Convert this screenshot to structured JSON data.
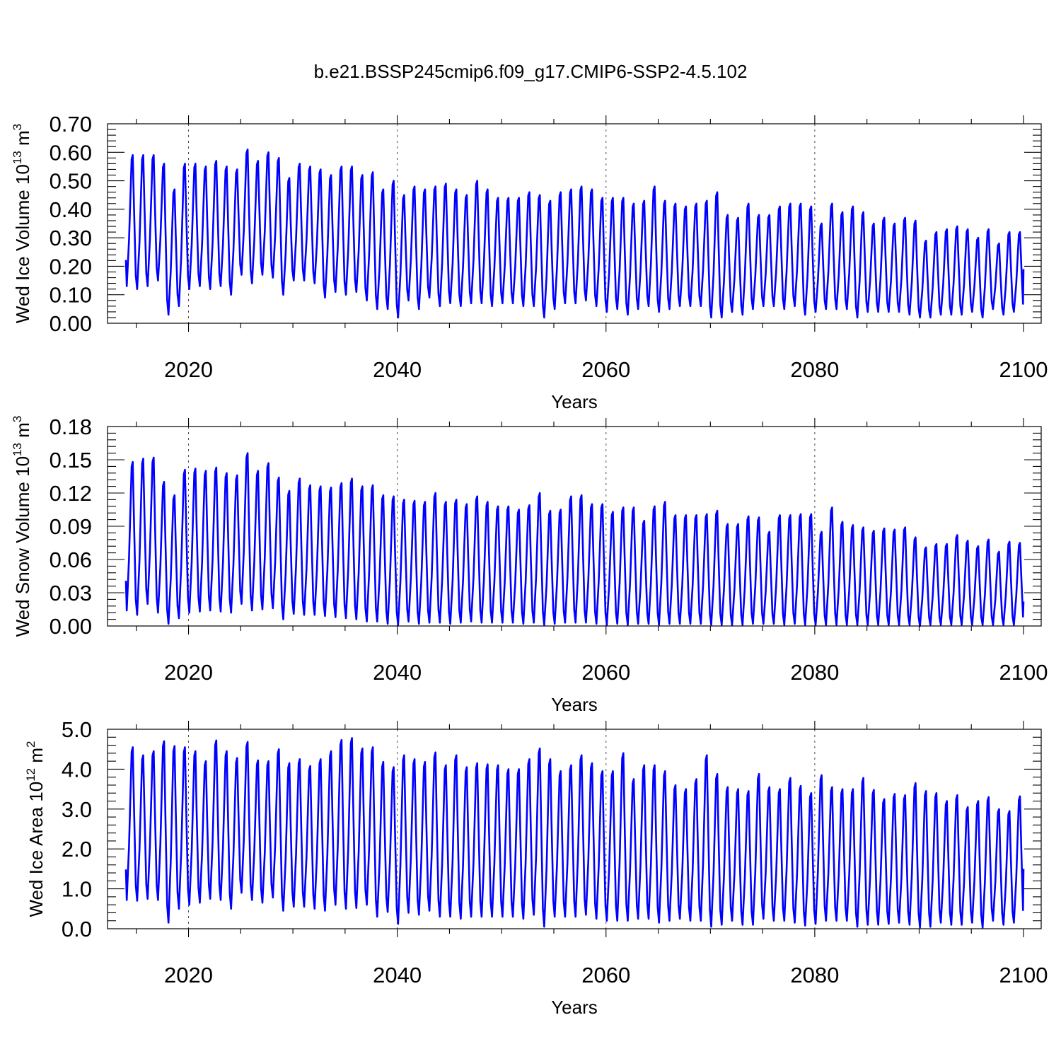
{
  "title": "b.e21.BSSP245cmip6.f09_g17.CMIP6-SSP2-4.5.102",
  "chart_data": [
    {
      "type": "line",
      "ylabel": "Wed Ice Volume 10",
      "ylabel_exponent": "13",
      "ylabel_unit": "m",
      "ylabel_unit_exponent": "3",
      "xlabel": "Years",
      "xlim": [
        2013,
        2100
      ],
      "ylim": [
        0,
        0.7
      ],
      "x_ticks": [
        "2020",
        "2040",
        "2060",
        "2080",
        "2100"
      ],
      "y_ticks": [
        "0.00",
        "0.10",
        "0.20",
        "0.30",
        "0.40",
        "0.50",
        "0.60",
        "0.70"
      ],
      "grid": "vertical dashed at labeled years",
      "color": "#0000ff",
      "series": [
        {
          "seasonal_cycle": "one maximum and one minimum per year",
          "x": [
            2014,
            2015,
            2016,
            2017,
            2018,
            2019,
            2020,
            2021,
            2022,
            2023,
            2024,
            2025,
            2026,
            2027,
            2028,
            2029,
            2030,
            2031,
            2032,
            2033,
            2034,
            2035,
            2036,
            2037,
            2038,
            2039,
            2040,
            2041,
            2042,
            2043,
            2044,
            2045,
            2046,
            2047,
            2048,
            2049,
            2050,
            2051,
            2052,
            2053,
            2054,
            2055,
            2056,
            2057,
            2058,
            2059,
            2060,
            2061,
            2062,
            2063,
            2064,
            2065,
            2066,
            2067,
            2068,
            2069,
            2070,
            2071,
            2072,
            2073,
            2074,
            2075,
            2076,
            2077,
            2078,
            2079,
            2080,
            2081,
            2082,
            2083,
            2084,
            2085,
            2086,
            2087,
            2088,
            2089,
            2090,
            2091,
            2092,
            2093,
            2094,
            2095,
            2096,
            2097,
            2098,
            2099
          ],
          "annual_max": [
            0.59,
            0.59,
            0.59,
            0.56,
            0.47,
            0.56,
            0.56,
            0.55,
            0.57,
            0.55,
            0.54,
            0.61,
            0.57,
            0.6,
            0.58,
            0.51,
            0.56,
            0.55,
            0.54,
            0.52,
            0.55,
            0.55,
            0.52,
            0.53,
            0.47,
            0.5,
            0.45,
            0.48,
            0.47,
            0.48,
            0.49,
            0.47,
            0.45,
            0.5,
            0.47,
            0.44,
            0.44,
            0.44,
            0.46,
            0.45,
            0.43,
            0.46,
            0.47,
            0.48,
            0.47,
            0.44,
            0.44,
            0.44,
            0.42,
            0.43,
            0.48,
            0.43,
            0.42,
            0.41,
            0.42,
            0.43,
            0.46,
            0.38,
            0.37,
            0.42,
            0.38,
            0.38,
            0.41,
            0.42,
            0.42,
            0.41,
            0.35,
            0.42,
            0.39,
            0.41,
            0.39,
            0.35,
            0.37,
            0.35,
            0.37,
            0.36,
            0.29,
            0.32,
            0.33,
            0.34,
            0.33,
            0.3,
            0.33,
            0.28,
            0.32,
            0.32
          ],
          "annual_min": [
            0.13,
            0.12,
            0.13,
            0.15,
            0.03,
            0.06,
            0.12,
            0.13,
            0.12,
            0.13,
            0.1,
            0.17,
            0.14,
            0.17,
            0.16,
            0.1,
            0.15,
            0.15,
            0.14,
            0.09,
            0.11,
            0.1,
            0.11,
            0.08,
            0.05,
            0.05,
            0.02,
            0.08,
            0.05,
            0.09,
            0.06,
            0.07,
            0.06,
            0.07,
            0.07,
            0.06,
            0.07,
            0.07,
            0.06,
            0.06,
            0.02,
            0.05,
            0.07,
            0.07,
            0.08,
            0.06,
            0.04,
            0.05,
            0.03,
            0.05,
            0.06,
            0.04,
            0.05,
            0.06,
            0.06,
            0.06,
            0.02,
            0.02,
            0.04,
            0.03,
            0.05,
            0.06,
            0.06,
            0.05,
            0.06,
            0.03,
            0.04,
            0.05,
            0.05,
            0.05,
            0.02,
            0.04,
            0.04,
            0.04,
            0.04,
            0.03,
            0.02,
            0.02,
            0.03,
            0.03,
            0.03,
            0.04,
            0.02,
            0.05,
            0.03,
            0.04
          ],
          "end_value": 0.19
        }
      ]
    },
    {
      "type": "line",
      "ylabel": "Wed Snow Volume 10",
      "ylabel_exponent": "13",
      "ylabel_unit": "m",
      "ylabel_unit_exponent": "3",
      "xlabel": "Years",
      "xlim": [
        2013,
        2100
      ],
      "ylim": [
        0,
        0.18
      ],
      "x_ticks": [
        "2020",
        "2040",
        "2060",
        "2080",
        "2100"
      ],
      "y_ticks": [
        "0.00",
        "0.03",
        "0.06",
        "0.09",
        "0.12",
        "0.15",
        "0.18"
      ],
      "grid": "vertical dashed at labeled years",
      "color": "#0000ff",
      "series": [
        {
          "seasonal_cycle": "one maximum and one minimum per year",
          "x": [
            2014,
            2015,
            2016,
            2017,
            2018,
            2019,
            2020,
            2021,
            2022,
            2023,
            2024,
            2025,
            2026,
            2027,
            2028,
            2029,
            2030,
            2031,
            2032,
            2033,
            2034,
            2035,
            2036,
            2037,
            2038,
            2039,
            2040,
            2041,
            2042,
            2043,
            2044,
            2045,
            2046,
            2047,
            2048,
            2049,
            2050,
            2051,
            2052,
            2053,
            2054,
            2055,
            2056,
            2057,
            2058,
            2059,
            2060,
            2061,
            2062,
            2063,
            2064,
            2065,
            2066,
            2067,
            2068,
            2069,
            2070,
            2071,
            2072,
            2073,
            2074,
            2075,
            2076,
            2077,
            2078,
            2079,
            2080,
            2081,
            2082,
            2083,
            2084,
            2085,
            2086,
            2087,
            2088,
            2089,
            2090,
            2091,
            2092,
            2093,
            2094,
            2095,
            2096,
            2097,
            2098,
            2099
          ],
          "annual_max": [
            0.148,
            0.151,
            0.152,
            0.13,
            0.118,
            0.141,
            0.142,
            0.14,
            0.143,
            0.138,
            0.136,
            0.156,
            0.14,
            0.147,
            0.134,
            0.122,
            0.133,
            0.127,
            0.126,
            0.125,
            0.129,
            0.133,
            0.126,
            0.127,
            0.118,
            0.117,
            0.114,
            0.113,
            0.112,
            0.12,
            0.112,
            0.114,
            0.11,
            0.117,
            0.112,
            0.108,
            0.108,
            0.105,
            0.109,
            0.12,
            0.104,
            0.105,
            0.117,
            0.118,
            0.11,
            0.11,
            0.103,
            0.107,
            0.107,
            0.095,
            0.108,
            0.112,
            0.1,
            0.1,
            0.1,
            0.101,
            0.104,
            0.092,
            0.092,
            0.099,
            0.098,
            0.085,
            0.1,
            0.1,
            0.101,
            0.101,
            0.085,
            0.107,
            0.094,
            0.091,
            0.089,
            0.086,
            0.088,
            0.087,
            0.089,
            0.08,
            0.071,
            0.074,
            0.074,
            0.082,
            0.077,
            0.072,
            0.078,
            0.067,
            0.076,
            0.075
          ],
          "annual_min": [
            0.014,
            0.01,
            0.02,
            0.012,
            0.002,
            0.007,
            0.012,
            0.013,
            0.014,
            0.013,
            0.012,
            0.02,
            0.014,
            0.015,
            0.016,
            0.006,
            0.011,
            0.01,
            0.01,
            0.009,
            0.008,
            0.007,
            0.006,
            0.004,
            0.004,
            0.002,
            0.001,
            0.004,
            0.002,
            0.003,
            0.003,
            0.002,
            0.003,
            0.004,
            0.003,
            0.003,
            0.003,
            0.003,
            0.002,
            0.003,
            0.001,
            0.002,
            0.003,
            0.003,
            0.003,
            0.002,
            0.001,
            0.002,
            0.001,
            0.002,
            0.002,
            0.001,
            0.002,
            0.002,
            0.002,
            0.002,
            0.001,
            0.001,
            0.001,
            0.001,
            0.002,
            0.002,
            0.002,
            0.001,
            0.002,
            0.001,
            0.001,
            0.001,
            0.001,
            0.001,
            0.001,
            0.001,
            0.001,
            0.001,
            0.001,
            0.001,
            0.0,
            0.001,
            0.001,
            0.001,
            0.001,
            0.001,
            0.001,
            0.001,
            0.001,
            0.001
          ],
          "end_value": 0.022
        }
      ]
    },
    {
      "type": "line",
      "ylabel": "Wed Ice Area 10",
      "ylabel_exponent": "12",
      "ylabel_unit": "m",
      "ylabel_unit_exponent": "2",
      "xlabel": "Years",
      "xlim": [
        2013,
        2100
      ],
      "ylim": [
        0,
        5
      ],
      "x_ticks": [
        "2020",
        "2040",
        "2060",
        "2080",
        "2100"
      ],
      "y_ticks": [
        "0.0",
        "1.0",
        "2.0",
        "3.0",
        "4.0",
        "5.0"
      ],
      "grid": "vertical dashed at labeled years",
      "color": "#0000ff",
      "series": [
        {
          "seasonal_cycle": "one maximum and one minimum per year",
          "x": [
            2014,
            2015,
            2016,
            2017,
            2018,
            2019,
            2020,
            2021,
            2022,
            2023,
            2024,
            2025,
            2026,
            2027,
            2028,
            2029,
            2030,
            2031,
            2032,
            2033,
            2034,
            2035,
            2036,
            2037,
            2038,
            2039,
            2040,
            2041,
            2042,
            2043,
            2044,
            2045,
            2046,
            2047,
            2048,
            2049,
            2050,
            2051,
            2052,
            2053,
            2054,
            2055,
            2056,
            2057,
            2058,
            2059,
            2060,
            2061,
            2062,
            2063,
            2064,
            2065,
            2066,
            2067,
            2068,
            2069,
            2070,
            2071,
            2072,
            2073,
            2074,
            2075,
            2076,
            2077,
            2078,
            2079,
            2080,
            2081,
            2082,
            2083,
            2084,
            2085,
            2086,
            2087,
            2088,
            2089,
            2090,
            2091,
            2092,
            2093,
            2094,
            2095,
            2096,
            2097,
            2098,
            2099
          ],
          "annual_max": [
            4.55,
            4.35,
            4.45,
            4.7,
            4.58,
            4.55,
            4.45,
            4.2,
            4.72,
            4.45,
            4.28,
            4.68,
            4.22,
            4.2,
            4.5,
            4.15,
            4.25,
            4.08,
            4.25,
            4.45,
            4.73,
            4.78,
            4.52,
            4.55,
            4.18,
            4.05,
            4.35,
            4.25,
            4.18,
            4.42,
            4.1,
            4.35,
            4.05,
            4.15,
            4.12,
            4.1,
            4.0,
            4.0,
            4.25,
            4.52,
            4.25,
            3.95,
            4.1,
            4.35,
            4.15,
            3.95,
            3.95,
            4.4,
            3.75,
            4.1,
            4.1,
            3.95,
            3.6,
            3.5,
            3.75,
            4.35,
            3.88,
            3.55,
            3.5,
            3.45,
            3.88,
            3.55,
            3.5,
            3.78,
            3.58,
            3.4,
            3.85,
            3.55,
            3.5,
            3.5,
            3.78,
            3.48,
            3.25,
            3.38,
            3.35,
            3.65,
            3.45,
            3.4,
            3.2,
            3.35,
            3.05,
            3.2,
            3.3,
            3.0,
            2.95,
            3.32
          ],
          "annual_min": [
            0.72,
            0.7,
            0.75,
            0.72,
            0.15,
            0.5,
            0.6,
            0.65,
            0.75,
            0.72,
            0.5,
            0.9,
            0.72,
            0.65,
            0.78,
            0.45,
            0.55,
            0.55,
            0.5,
            0.45,
            0.6,
            0.5,
            0.52,
            0.6,
            0.3,
            0.42,
            0.12,
            0.4,
            0.35,
            0.45,
            0.3,
            0.3,
            0.25,
            0.3,
            0.3,
            0.3,
            0.3,
            0.3,
            0.25,
            0.35,
            0.05,
            0.3,
            0.3,
            0.3,
            0.35,
            0.25,
            0.2,
            0.2,
            0.2,
            0.25,
            0.25,
            0.15,
            0.2,
            0.25,
            0.2,
            0.2,
            0.05,
            0.1,
            0.2,
            0.1,
            0.1,
            0.25,
            0.2,
            0.2,
            0.15,
            0.08,
            0.12,
            0.2,
            0.2,
            0.2,
            0.05,
            0.1,
            0.1,
            0.12,
            0.15,
            0.1,
            0.03,
            0.05,
            0.15,
            0.1,
            0.1,
            0.15,
            0.03,
            0.2,
            0.1,
            0.15
          ],
          "end_value": 1.5
        }
      ]
    }
  ]
}
